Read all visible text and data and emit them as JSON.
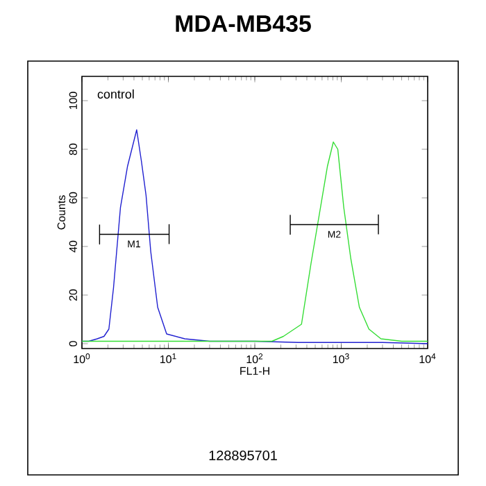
{
  "chart_data": {
    "type": "line",
    "title": "MDA-MB435",
    "xlabel": "FL1-H",
    "ylabel": "Counts",
    "log": "x",
    "xlim": [
      1,
      10000
    ],
    "ylim": [
      -2,
      110
    ],
    "xticks": [
      {
        "value": 1,
        "label": "10$^{0}$"
      },
      {
        "value": 10,
        "label": "10$^{1}$"
      },
      {
        "value": 100,
        "label": "10$^{2}$"
      },
      {
        "value": 1000,
        "label": "10$^{3}$"
      },
      {
        "value": 10000,
        "label": "10$^{4}$"
      }
    ],
    "yticks": [
      0,
      20,
      40,
      60,
      80,
      100
    ],
    "series": [
      {
        "color": "#1f1fd0",
        "x": [
          1,
          1.2,
          1.5,
          1.8,
          2.05,
          2.32,
          2.79,
          3.37,
          4.3,
          4.88,
          5.52,
          6.25,
          7.52,
          9.55,
          15.5,
          30,
          100,
          316,
          1000,
          3000,
          10000
        ],
        "values": [
          1,
          1,
          2,
          3,
          6,
          23,
          56,
          73,
          88,
          75,
          61,
          38,
          15,
          4,
          2,
          1,
          1,
          0.5,
          0.5,
          0.5,
          0
        ]
      },
      {
        "color": "#33dd33",
        "x": [
          1,
          10,
          100,
          158,
          214,
          347,
          447,
          575,
          692,
          810,
          912,
          1070,
          1290,
          1620,
          2090,
          2880,
          5000,
          10000
        ],
        "values": [
          1,
          1,
          1,
          1,
          3,
          8,
          33,
          56,
          73,
          83,
          80,
          56,
          35,
          15,
          6,
          2,
          1,
          1
        ]
      },
      {
        "color": "#000000",
        "x": [
          1.6,
          1.6,
          1.6,
          10.2,
          10.2,
          10.2
        ],
        "values": [
          49,
          41,
          45,
          45,
          49,
          41
        ]
      },
      {
        "color": "#000000",
        "x": [
          257,
          257,
          257,
          2690,
          2690,
          2690
        ],
        "values": [
          53,
          45,
          49,
          49,
          53,
          45
        ]
      }
    ],
    "annotations": [
      "control",
      "128895701",
      {
        "text": "M1",
        "x": 4.0,
        "y": 45
      },
      {
        "text": "M2",
        "x": 830,
        "y": 49
      }
    ]
  }
}
